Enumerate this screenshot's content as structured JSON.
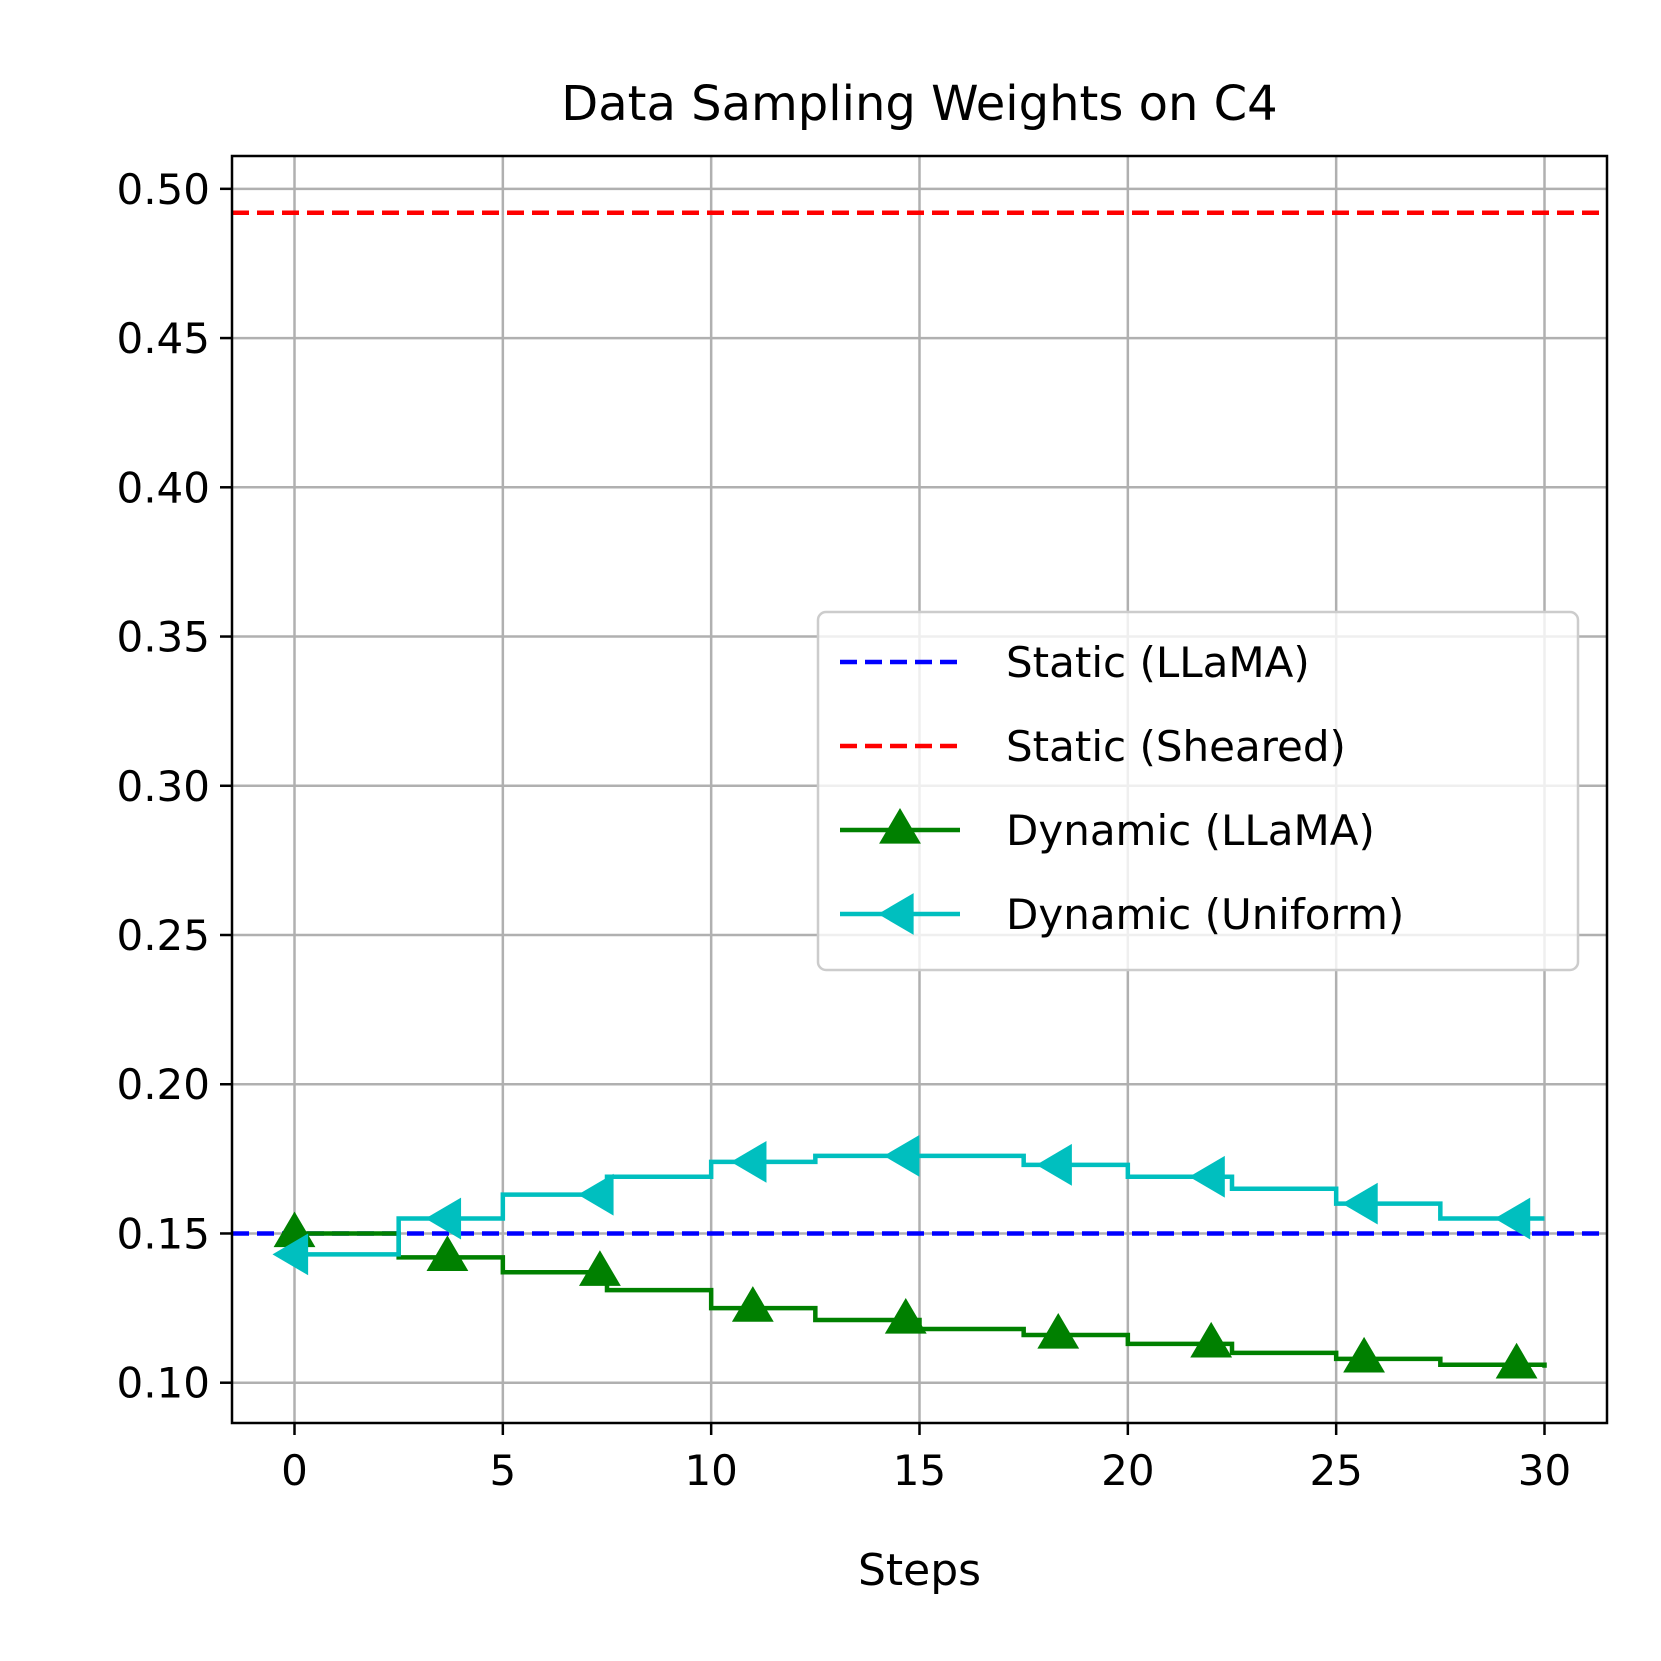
{
  "chart_data": {
    "type": "line",
    "title": "Data Sampling Weights on C4",
    "xlabel": "Steps",
    "ylabel": "",
    "xlim": [
      -1.5,
      31.5
    ],
    "ylim": [
      0.0865,
      0.511
    ],
    "xticks": [
      0,
      5,
      10,
      15,
      20,
      25,
      30
    ],
    "xtick_labels": [
      "0",
      "5",
      "10",
      "15",
      "20",
      "25",
      "30"
    ],
    "yticks": [
      0.1,
      0.15,
      0.2,
      0.25,
      0.3,
      0.35,
      0.4,
      0.45,
      0.5
    ],
    "ytick_labels": [
      "0.10",
      "0.15",
      "0.20",
      "0.25",
      "0.30",
      "0.35",
      "0.40",
      "0.45",
      "0.50"
    ],
    "grid": true,
    "legend_position": "center-right",
    "series": [
      {
        "name": "Static (LLaMA)",
        "color": "#0000ff",
        "style": "dashed",
        "marker": "none",
        "value": 0.15
      },
      {
        "name": "Static (Sheared)",
        "color": "#ff0000",
        "style": "dashed",
        "marker": "none",
        "value": 0.492
      },
      {
        "name": "Dynamic (LLaMA)",
        "color": "#008000",
        "style": "solid-step",
        "marker": "triangle-up",
        "x": [
          0,
          2.5,
          5,
          7.5,
          10,
          12.5,
          15,
          17.5,
          20,
          22.5,
          25,
          27.5,
          30
        ],
        "y": [
          0.15,
          0.142,
          0.137,
          0.131,
          0.125,
          0.121,
          0.118,
          0.116,
          0.113,
          0.11,
          0.108,
          0.106,
          0.105
        ],
        "marker_x": [
          0,
          3.67,
          7.33,
          11,
          14.67,
          18.33,
          22,
          25.67,
          29.33
        ]
      },
      {
        "name": "Dynamic (Uniform)",
        "color": "#00bfbf",
        "style": "solid-step",
        "marker": "triangle-left",
        "x": [
          0,
          2.5,
          5,
          7.5,
          10,
          12.5,
          15,
          17.5,
          20,
          22.5,
          25,
          27.5,
          30
        ],
        "y": [
          0.143,
          0.155,
          0.163,
          0.169,
          0.174,
          0.176,
          0.176,
          0.173,
          0.169,
          0.165,
          0.16,
          0.155,
          0.155
        ],
        "marker_x": [
          0,
          3.67,
          7.33,
          11,
          14.67,
          18.33,
          22,
          25.67,
          29.33
        ]
      }
    ]
  }
}
